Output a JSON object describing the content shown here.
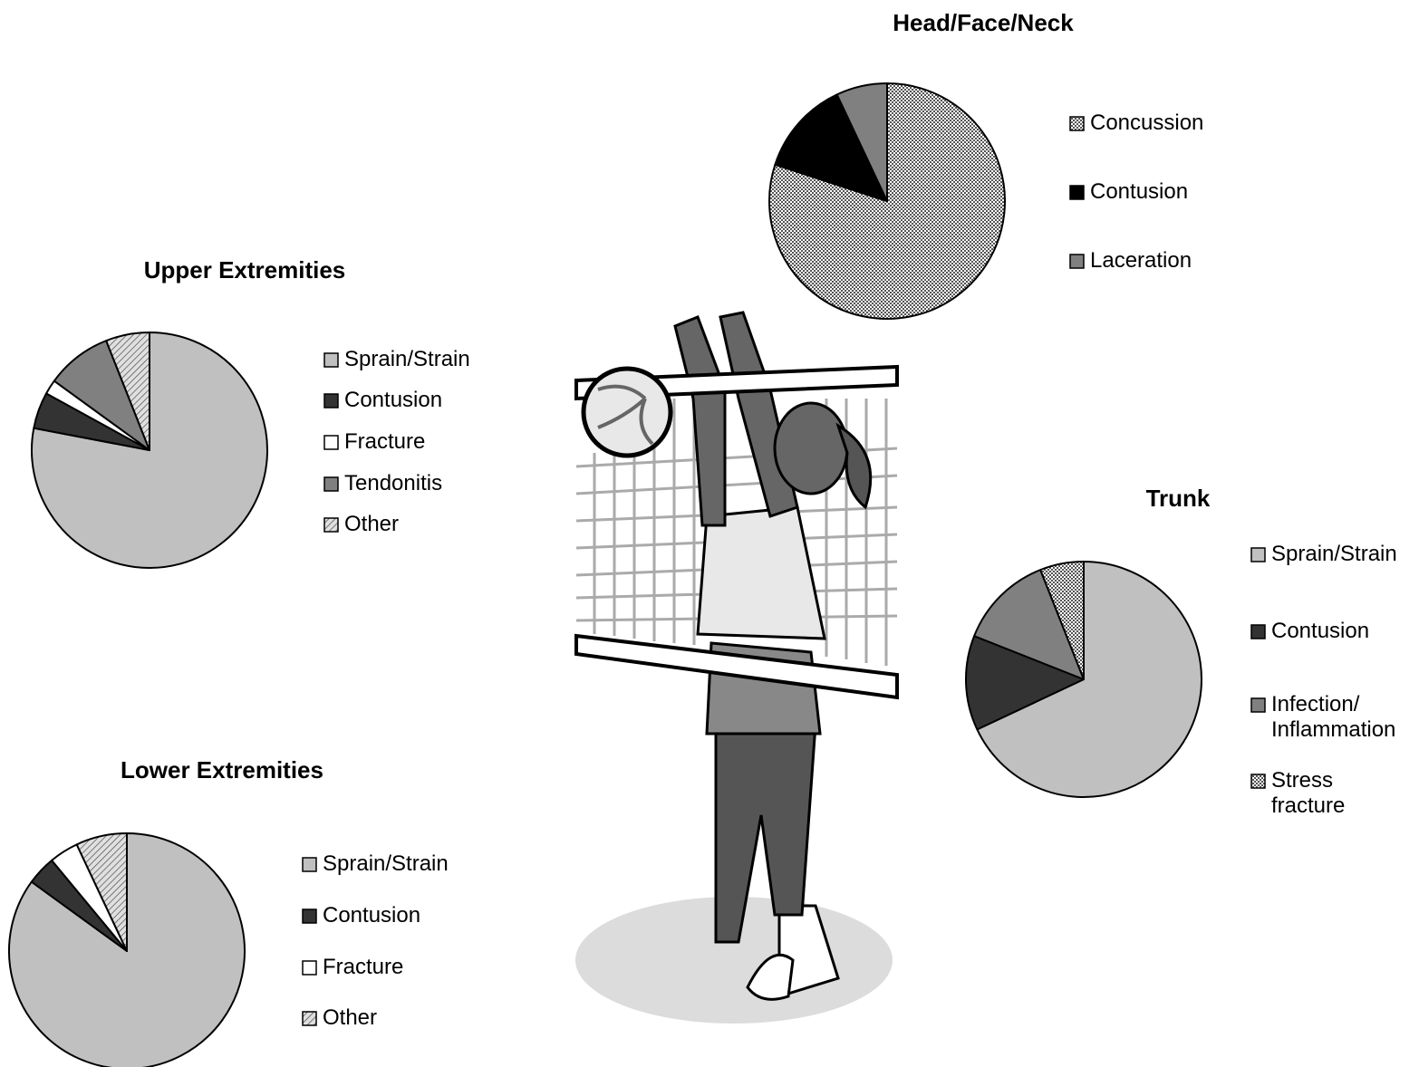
{
  "chart_data": [
    {
      "type": "pie",
      "title": "Head/Face/Neck",
      "categories": [
        "Concussion",
        "Contusion",
        "Laceration"
      ],
      "values": [
        80,
        13,
        7
      ],
      "colors": [
        "check",
        "#000000",
        "#808080"
      ]
    },
    {
      "type": "pie",
      "title": "Upper Extremities",
      "categories": [
        "Sprain/Strain",
        "Contusion",
        "Fracture",
        "Tendonitis",
        "Other"
      ],
      "values": [
        78,
        5,
        2,
        9,
        6
      ],
      "colors": [
        "#c0c0c0",
        "#333333",
        "#ffffff",
        "#808080",
        "hatch"
      ]
    },
    {
      "type": "pie",
      "title": "Trunk",
      "categories": [
        "Sprain/Strain",
        "Contusion",
        "Infection/ Inflammation",
        "Stress fracture"
      ],
      "values": [
        68,
        13,
        13,
        6
      ],
      "colors": [
        "#c0c0c0",
        "#333333",
        "#808080",
        "check"
      ]
    },
    {
      "type": "pie",
      "title": "Lower Extremities",
      "categories": [
        "Sprain/Strain",
        "Contusion",
        "Fracture",
        "Other"
      ],
      "values": [
        85,
        4,
        4,
        7
      ],
      "colors": [
        "#c0c0c0",
        "#333333",
        "#ffffff",
        "hatch"
      ]
    }
  ]
}
